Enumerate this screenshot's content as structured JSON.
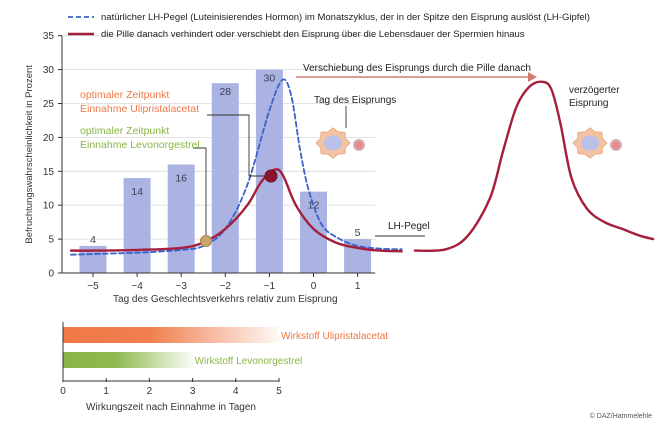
{
  "chart_data": [
    {
      "type": "bar",
      "ylabel": "Befruchtungswahrscheinlichkeit in Prozent",
      "xlabel": "Tag des Geschlechtsverkehrs relativ zum Eisprung",
      "ylim": [
        0,
        35
      ],
      "yticks": [
        0,
        5,
        10,
        15,
        20,
        25,
        30,
        35
      ],
      "categories": [
        "−5",
        "−4",
        "−3",
        "−2",
        "−1",
        "0",
        "1"
      ],
      "x": [
        -5,
        -4,
        -3,
        -2,
        -1,
        0,
        1
      ],
      "values": [
        4,
        14,
        16,
        28,
        30,
        12,
        5
      ],
      "value_labels": [
        "4",
        "14",
        "16",
        "28",
        "30",
        "12",
        "5"
      ],
      "grid": true,
      "legend": {
        "placement": "top",
        "items": [
          {
            "style": "dashed",
            "color": "#3a62c8",
            "text": "natürlicher LH-Pegel (Luteinisierendes   Hormon) im Monatszyklus, der in der Spitze den Eisprung auslöst (LH-Gipfel)"
          },
          {
            "style": "solid",
            "color": "#a51e3c",
            "text": "die Pille danach verhindert oder verschiebt den Eisprung über die Lebensdauer der Spermien hinaus"
          }
        ]
      },
      "series": [
        {
          "style": "dashed",
          "color": "#3a62c8",
          "x": [
            -5.5,
            -5,
            -4,
            -3,
            -2.5,
            -2,
            -1.5,
            -1,
            -0.7,
            -0.5,
            -0.3,
            -0.1,
            0.2,
            0.6,
            1,
            1.5,
            2
          ],
          "y": [
            2.7,
            2.8,
            3.0,
            3.4,
            4.0,
            6.5,
            13,
            24,
            28.5,
            26,
            18,
            12,
            7,
            5,
            4,
            3.6,
            3.5
          ]
        },
        {
          "style": "solid",
          "color": "#a51e3c",
          "x": [
            -5.5,
            -5,
            -4,
            -3,
            -2.5,
            -2,
            -1.5,
            -1.2,
            -0.9,
            -0.7,
            -0.4,
            0,
            0.5,
            1,
            1.5,
            2
          ],
          "y": [
            3.3,
            3.3,
            3.4,
            3.7,
            4.5,
            6.5,
            10,
            13.3,
            15.2,
            14.5,
            10,
            6.5,
            4.5,
            3.7,
            3.3,
            3.2
          ]
        },
        {
          "style": "solid",
          "color": "#a51e3c",
          "segment": "delayed",
          "x": [
            2.3,
            3,
            3.5,
            4,
            4.3,
            4.6,
            4.9,
            5.2,
            5.4,
            5.6,
            5.85,
            6.2,
            6.6,
            7.0,
            7.4,
            7.7
          ],
          "y": [
            3.3,
            3.5,
            5.5,
            11,
            18,
            24.5,
            27.5,
            28.2,
            27.0,
            22,
            14,
            9.5,
            7.5,
            6.5,
            5.5,
            5.0
          ]
        }
      ],
      "annotations": {
        "shift": "Verschiebung des Eisprungs durch die Pille danach",
        "ovulation_day": "Tag des Eisprungs",
        "delayed_line1": "verzögerter",
        "delayed_line2": "Eisprung",
        "lh_level": "LH-Pegel",
        "upa_line1": "optimaler Zeitpunkt",
        "upa_line2": "Einnahme Ulipristalacetat",
        "lng_line1": "optimaler Zeitpunkt",
        "lng_line2": "Einnahme Levonorgestrel"
      }
    },
    {
      "type": "bar",
      "orientation": "horizontal",
      "xlabel": "Wirkungszeit nach Einnahme in Tagen",
      "xlim": [
        0,
        5
      ],
      "xticks": [
        0,
        1,
        2,
        3,
        4,
        5
      ],
      "series": [
        {
          "name": "Wirkstoff Ulipristalacetat",
          "color": "#f07846",
          "value": 5
        },
        {
          "name": "Wirkstoff Levonorgestrel",
          "color": "#8ab545",
          "value": 3
        }
      ]
    }
  ],
  "credit": "© DAZ/Hammelehle",
  "colors": {
    "bar": "#aab3e2",
    "bar_label": "#3a3f55",
    "dashed": "#3a62c8",
    "solid": "#a51e3c",
    "upa": "#f07846",
    "lng": "#8ab545",
    "egg_outer": "#f3c2a3",
    "egg_inner": "#b9c1ea"
  }
}
